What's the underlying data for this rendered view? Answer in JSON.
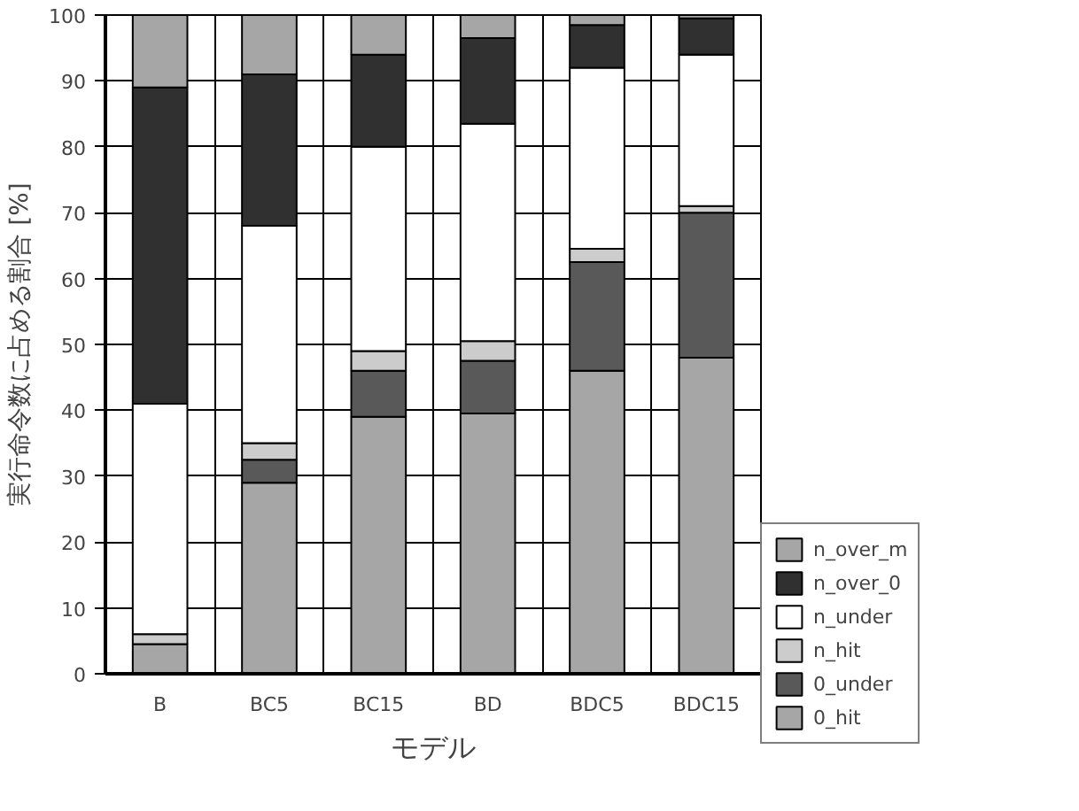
{
  "chart_data": {
    "type": "bar",
    "stacked": true,
    "xlabel": "モデル",
    "ylabel": "実行命令数に占める割合 [%]",
    "categories": [
      "B",
      "BC5",
      "BC15",
      "BD",
      "BDC5",
      "BDC15"
    ],
    "series": [
      {
        "name": "0_hit",
        "color": "#a6a6a6",
        "values": [
          4.5,
          29,
          39,
          39.5,
          46,
          48
        ]
      },
      {
        "name": "0_under",
        "color": "#595959",
        "values": [
          null,
          3.5,
          7,
          8,
          16.5,
          22
        ]
      },
      {
        "name": "n_hit",
        "color": "#cccccc",
        "values": [
          1.5,
          2.5,
          3,
          3,
          2,
          1
        ]
      },
      {
        "name": "n_under",
        "color": "#ffffff",
        "values": [
          35,
          33,
          31,
          33,
          27.5,
          23
        ]
      },
      {
        "name": "n_over_0",
        "color": "#303030",
        "values": [
          48,
          23,
          14,
          13,
          6.5,
          5.5
        ]
      },
      {
        "name": "n_over_m",
        "color": "#a6a6a6",
        "values": [
          11,
          9,
          6,
          3.5,
          1.5,
          0.5
        ]
      }
    ],
    "ylim": [
      0,
      100
    ],
    "yticks": [
      0,
      10,
      20,
      30,
      40,
      50,
      60,
      70,
      80,
      90,
      100
    ],
    "grid": true,
    "legend": "right"
  }
}
